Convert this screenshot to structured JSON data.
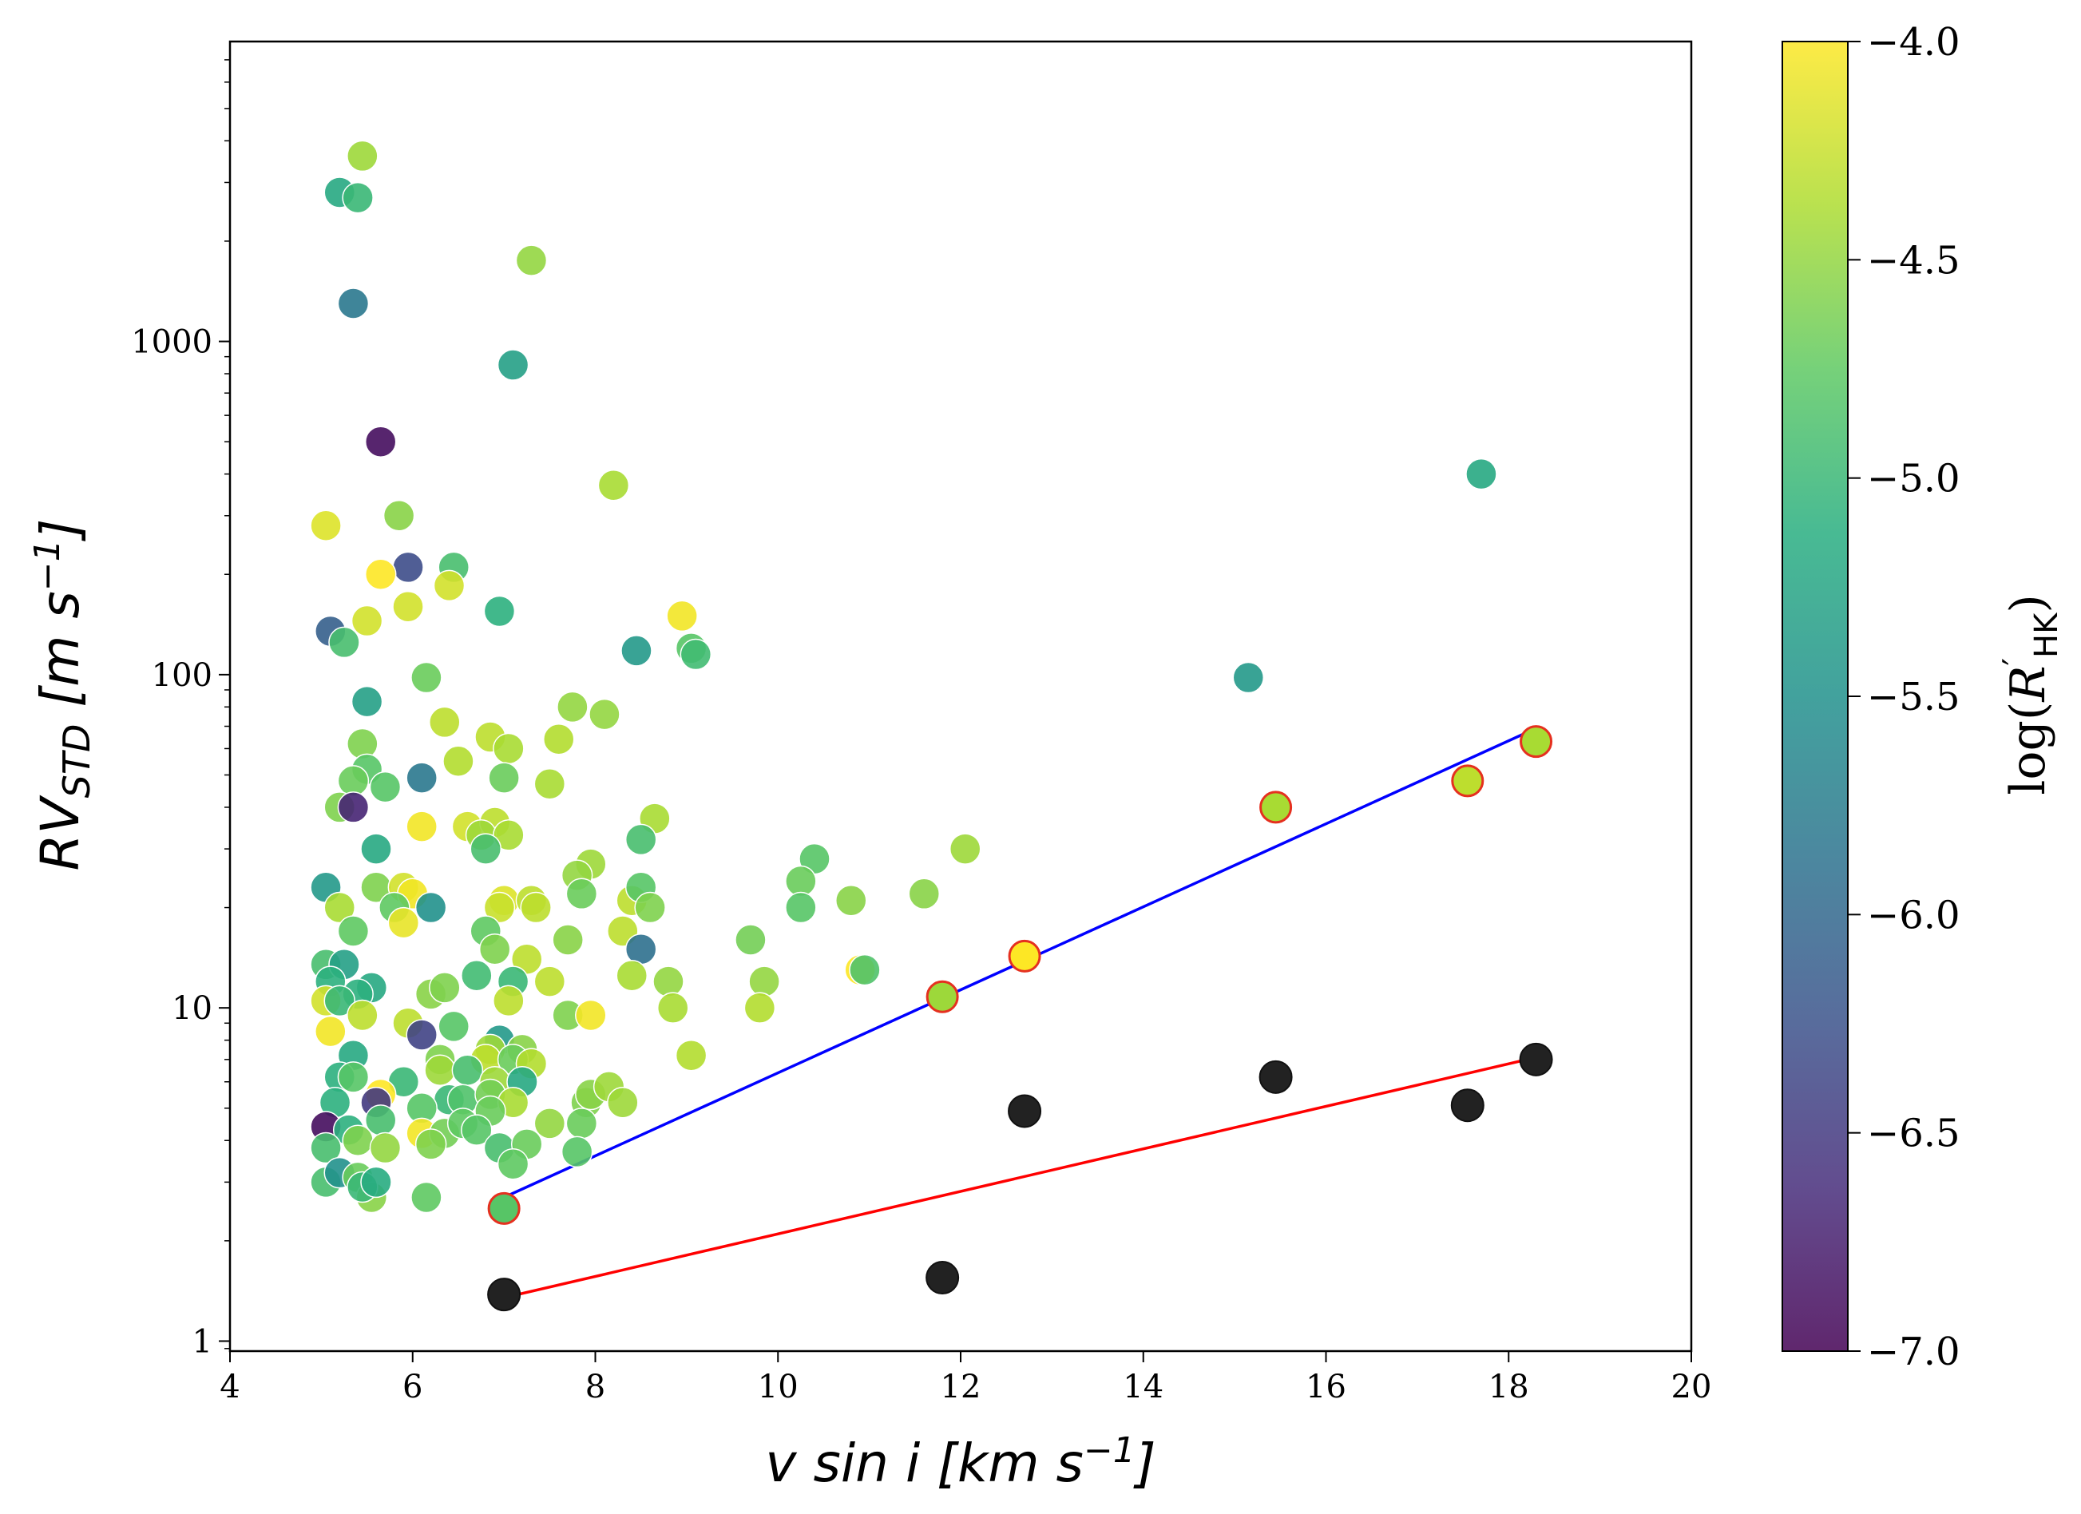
{
  "chart_data": {
    "type": "scatter",
    "xlabel": {
      "main": "v sin i [km s",
      "sup": "−1",
      "end": "]"
    },
    "ylabel": {
      "base": "RV",
      "sub": "STD",
      "main": " [m s",
      "sup": "−1",
      "end": "]"
    },
    "xlim": [
      4,
      20
    ],
    "ylim_log10": [
      -0.03,
      3.9
    ],
    "yscale": "log",
    "x_ticks": [
      4,
      6,
      8,
      10,
      12,
      14,
      16,
      18,
      20
    ],
    "x_tick_labels": [
      "4",
      "6",
      "8",
      "10",
      "12",
      "14",
      "16",
      "18",
      "20"
    ],
    "y_ticks": [
      1,
      10,
      100,
      1000
    ],
    "y_tick_labels": [
      "1",
      "10",
      "100",
      "1000"
    ],
    "colorbar": {
      "label": {
        "pre": "log(",
        "var": "R",
        "prime": "′",
        "sub": "HK",
        "post": ")"
      },
      "range": [
        -7.0,
        -4.0
      ],
      "ticks": [
        -4.0,
        -4.5,
        -5.0,
        -5.5,
        -6.0,
        -6.5,
        -7.0
      ],
      "tick_labels": [
        "−4.0",
        "−4.5",
        "−5.0",
        "−5.5",
        "−6.0",
        "−6.5",
        "−7.0"
      ],
      "colormap": "viridis"
    },
    "series": [
      {
        "name": "stars",
        "points": [
          [
            5.45,
            3600,
            -4.45
          ],
          [
            5.2,
            2800,
            -5.2
          ],
          [
            5.4,
            2700,
            -5.0
          ],
          [
            5.35,
            1300,
            -5.8
          ],
          [
            7.3,
            1750,
            -4.5
          ],
          [
            7.1,
            850,
            -5.3
          ],
          [
            5.65,
            500,
            -6.9
          ],
          [
            8.2,
            370,
            -4.4
          ],
          [
            5.85,
            300,
            -4.55
          ],
          [
            5.05,
            280,
            -4.15
          ],
          [
            5.95,
            210,
            -6.3
          ],
          [
            6.45,
            210,
            -4.9
          ],
          [
            5.65,
            200,
            -4.0
          ],
          [
            6.4,
            185,
            -4.2
          ],
          [
            5.95,
            160,
            -4.2
          ],
          [
            6.95,
            155,
            -5.1
          ],
          [
            5.5,
            145,
            -4.2
          ],
          [
            5.1,
            135,
            -6.1
          ],
          [
            5.25,
            125,
            -4.9
          ],
          [
            8.95,
            150,
            -4.05
          ],
          [
            8.45,
            118,
            -5.4
          ],
          [
            9.05,
            120,
            -4.8
          ],
          [
            9.1,
            115,
            -4.95
          ],
          [
            6.15,
            98,
            -4.7
          ],
          [
            5.5,
            83,
            -5.3
          ],
          [
            7.75,
            80,
            -4.5
          ],
          [
            8.1,
            76,
            -4.5
          ],
          [
            6.35,
            72,
            -4.3
          ],
          [
            6.85,
            65,
            -4.3
          ],
          [
            7.05,
            60,
            -4.4
          ],
          [
            7.6,
            64,
            -4.35
          ],
          [
            5.45,
            62,
            -4.6
          ],
          [
            6.5,
            55,
            -4.35
          ],
          [
            5.5,
            52,
            -4.8
          ],
          [
            5.35,
            48,
            -4.7
          ],
          [
            6.1,
            49,
            -5.8
          ],
          [
            7.0,
            49,
            -4.7
          ],
          [
            7.5,
            47,
            -4.4
          ],
          [
            5.7,
            46,
            -4.8
          ],
          [
            5.2,
            40,
            -4.6
          ],
          [
            5.35,
            40,
            -6.7
          ],
          [
            6.6,
            35,
            -4.2
          ],
          [
            6.9,
            36,
            -4.3
          ],
          [
            6.1,
            35,
            -4.05
          ],
          [
            6.75,
            33,
            -4.45
          ],
          [
            7.05,
            33,
            -4.4
          ],
          [
            8.65,
            37,
            -4.4
          ],
          [
            8.5,
            32,
            -4.9
          ],
          [
            6.8,
            30,
            -4.9
          ],
          [
            5.6,
            30,
            -5.2
          ],
          [
            10.4,
            28,
            -4.8
          ],
          [
            12.05,
            30,
            -4.45
          ],
          [
            7.95,
            27,
            -4.45
          ],
          [
            7.8,
            25,
            -4.5
          ],
          [
            10.25,
            24,
            -4.7
          ],
          [
            5.05,
            23,
            -5.4
          ],
          [
            5.6,
            23,
            -4.6
          ],
          [
            5.9,
            23,
            -4.2
          ],
          [
            6.0,
            22,
            -4.05
          ],
          [
            7.0,
            21,
            -4.15
          ],
          [
            7.3,
            21,
            -4.3
          ],
          [
            7.85,
            22,
            -4.7
          ],
          [
            8.4,
            21,
            -4.3
          ],
          [
            8.5,
            23,
            -4.8
          ],
          [
            8.6,
            20,
            -4.6
          ],
          [
            10.8,
            21,
            -4.55
          ],
          [
            11.6,
            22,
            -4.55
          ],
          [
            5.2,
            20,
            -4.4
          ],
          [
            5.8,
            20,
            -4.75
          ],
          [
            6.2,
            20,
            -5.5
          ],
          [
            6.95,
            20,
            -4.25
          ],
          [
            7.35,
            20,
            -4.3
          ],
          [
            10.25,
            20,
            -4.8
          ],
          [
            5.9,
            18,
            -4.1
          ],
          [
            5.35,
            17,
            -4.75
          ],
          [
            6.8,
            17,
            -4.75
          ],
          [
            7.7,
            16,
            -4.55
          ],
          [
            8.3,
            17,
            -4.3
          ],
          [
            9.7,
            16,
            -4.65
          ],
          [
            6.9,
            15,
            -4.6
          ],
          [
            8.5,
            15,
            -5.9
          ],
          [
            7.25,
            14,
            -4.3
          ],
          [
            10.9,
            13,
            -4.0
          ],
          [
            10.95,
            13,
            -4.85
          ],
          [
            5.05,
            13.5,
            -4.9
          ],
          [
            5.25,
            13.5,
            -5.3
          ],
          [
            6.7,
            12.5,
            -4.95
          ],
          [
            7.1,
            12,
            -5.0
          ],
          [
            7.5,
            12,
            -4.3
          ],
          [
            8.4,
            12.5,
            -4.4
          ],
          [
            8.8,
            12,
            -4.5
          ],
          [
            9.85,
            12,
            -4.5
          ],
          [
            5.1,
            12,
            -5.1
          ],
          [
            5.55,
            11.5,
            -5.2
          ],
          [
            6.2,
            11,
            -4.55
          ],
          [
            6.35,
            11.5,
            -4.6
          ],
          [
            5.4,
            11,
            -5.1
          ],
          [
            5.05,
            10.5,
            -4.2
          ],
          [
            5.2,
            10.5,
            -5.0
          ],
          [
            7.05,
            10.5,
            -4.3
          ],
          [
            8.85,
            10,
            -4.4
          ],
          [
            9.8,
            10,
            -4.35
          ],
          [
            5.45,
            9.5,
            -4.3
          ],
          [
            5.95,
            9,
            -4.3
          ],
          [
            7.7,
            9.5,
            -4.6
          ],
          [
            7.95,
            9.5,
            -4.05
          ],
          [
            5.1,
            8.5,
            -4.05
          ],
          [
            6.1,
            8.3,
            -6.4
          ],
          [
            6.45,
            8.8,
            -4.8
          ],
          [
            6.95,
            8,
            -5.4
          ],
          [
            6.85,
            7.5,
            -4.45
          ],
          [
            7.2,
            7.5,
            -4.55
          ],
          [
            5.35,
            7.2,
            -5.2
          ],
          [
            6.3,
            7,
            -4.6
          ],
          [
            6.8,
            7,
            -4.3
          ],
          [
            7.1,
            7,
            -4.7
          ],
          [
            7.3,
            6.8,
            -4.35
          ],
          [
            9.05,
            7.2,
            -4.35
          ],
          [
            5.2,
            6.2,
            -5.1
          ],
          [
            5.35,
            6.2,
            -4.8
          ],
          [
            5.9,
            6,
            -5.0
          ],
          [
            6.3,
            6.5,
            -4.45
          ],
          [
            6.6,
            6.5,
            -4.9
          ],
          [
            6.9,
            6.0,
            -4.45
          ],
          [
            7.2,
            6,
            -5.2
          ],
          [
            5.65,
            5.5,
            -4.0
          ],
          [
            6.4,
            5.3,
            -5.0
          ],
          [
            6.55,
            5.3,
            -4.85
          ],
          [
            6.85,
            5.5,
            -4.65
          ],
          [
            7.1,
            5.2,
            -4.4
          ],
          [
            7.9,
            5.2,
            -4.6
          ],
          [
            7.95,
            5.5,
            -4.55
          ],
          [
            8.15,
            5.8,
            -4.45
          ],
          [
            8.3,
            5.2,
            -4.45
          ],
          [
            5.15,
            5.2,
            -5.1
          ],
          [
            5.6,
            5.2,
            -6.5
          ],
          [
            6.1,
            5.0,
            -4.8
          ],
          [
            6.85,
            4.9,
            -4.7
          ],
          [
            5.05,
            4.4,
            -6.9
          ],
          [
            5.3,
            4.3,
            -5.1
          ],
          [
            5.65,
            4.6,
            -4.9
          ],
          [
            6.1,
            4.2,
            -4.05
          ],
          [
            6.35,
            4.2,
            -4.65
          ],
          [
            6.55,
            4.5,
            -4.75
          ],
          [
            6.7,
            4.3,
            -4.8
          ],
          [
            7.5,
            4.5,
            -4.5
          ],
          [
            7.85,
            4.5,
            -4.7
          ],
          [
            5.05,
            3.8,
            -4.9
          ],
          [
            5.4,
            4.0,
            -4.6
          ],
          [
            5.7,
            3.8,
            -4.5
          ],
          [
            6.2,
            3.9,
            -4.6
          ],
          [
            6.95,
            3.8,
            -4.9
          ],
          [
            7.25,
            3.9,
            -4.7
          ],
          [
            7.8,
            3.7,
            -4.8
          ],
          [
            5.05,
            3.0,
            -4.9
          ],
          [
            5.2,
            3.2,
            -5.5
          ],
          [
            5.4,
            3.1,
            -4.7
          ],
          [
            5.55,
            2.7,
            -4.55
          ],
          [
            5.45,
            2.9,
            -5.0
          ],
          [
            5.6,
            3.0,
            -5.15
          ],
          [
            6.15,
            2.7,
            -4.75
          ],
          [
            7.1,
            3.4,
            -4.75
          ],
          [
            15.15,
            98,
            -5.4
          ],
          [
            17.7,
            400,
            -5.2
          ]
        ]
      },
      {
        "name": "highlighted",
        "edge_color": "#e5301f",
        "points": [
          [
            7.0,
            2.5,
            -4.8
          ],
          [
            11.8,
            10.8,
            -4.45
          ],
          [
            12.7,
            14.3,
            -4.0
          ],
          [
            15.45,
            40,
            -4.4
          ],
          [
            17.55,
            48,
            -4.3
          ],
          [
            18.3,
            63,
            -4.4
          ]
        ]
      },
      {
        "name": "black",
        "color": "#222222",
        "points": [
          [
            7.0,
            1.38
          ],
          [
            11.8,
            1.55
          ],
          [
            12.7,
            4.9
          ],
          [
            15.45,
            6.2
          ],
          [
            17.55,
            5.1
          ],
          [
            18.3,
            7.0
          ]
        ]
      }
    ],
    "fit_lines": [
      {
        "name": "blue-fit",
        "color": "#0000ff",
        "x": [
          7.0,
          18.3
        ],
        "y": [
          2.7,
          69
        ]
      },
      {
        "name": "red-fit",
        "color": "#ff0000",
        "x": [
          7.0,
          18.3
        ],
        "y": [
          1.35,
          7.1
        ]
      }
    ]
  }
}
